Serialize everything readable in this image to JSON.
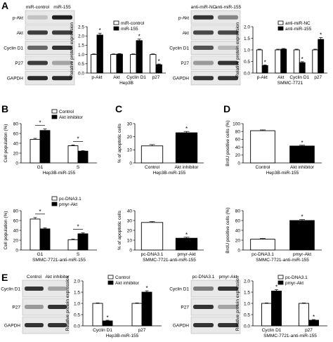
{
  "panels": {
    "A": "A",
    "B": "B",
    "C": "C",
    "D": "D",
    "E": "E"
  },
  "blots": {
    "A_left": {
      "headers": [
        "miR-control",
        "miR-155"
      ],
      "rows": [
        "p-Akt",
        "Akt",
        "Cyclin D1",
        "P27",
        "GAPDH"
      ],
      "intensity": [
        [
          0.15,
          0.95
        ],
        [
          0.8,
          0.8
        ],
        [
          0.6,
          0.85
        ],
        [
          0.8,
          0.3
        ],
        [
          0.9,
          0.9
        ]
      ]
    },
    "A_right": {
      "headers": [
        "anti-miR-NC",
        "anti-miR-155"
      ],
      "rows": [
        "p-Akt",
        "Akt",
        "Cyclin D1",
        "P27",
        "GAPDH"
      ],
      "intensity": [
        [
          0.85,
          0.45
        ],
        [
          0.75,
          0.75
        ],
        [
          0.7,
          0.2
        ],
        [
          0.35,
          0.85
        ],
        [
          0.85,
          0.85
        ]
      ]
    },
    "E_left": {
      "headers": [
        "Control",
        "Akt inhibitor"
      ],
      "rows": [
        "Cyclin D1",
        "P27",
        "GAPDH"
      ],
      "intensity": [
        [
          0.85,
          0.3
        ],
        [
          0.35,
          0.85
        ],
        [
          0.85,
          0.85
        ]
      ]
    },
    "E_right": {
      "headers": [
        "pc-DNA3.1",
        "pmyr-Akt"
      ],
      "rows": [
        "Cyclin D1",
        "P27",
        "GAPDH"
      ],
      "intensity": [
        [
          0.5,
          0.85
        ],
        [
          0.85,
          0.3
        ],
        [
          0.85,
          0.85
        ]
      ]
    }
  },
  "chart_data": [
    {
      "id": "A1",
      "type": "bar",
      "categories": [
        "p-Akt",
        "Akt",
        "Cyclin D1",
        "p27"
      ],
      "series": [
        {
          "name": "miR-control",
          "values": [
            1,
            1,
            1,
            1
          ],
          "err": [
            0.03,
            0.03,
            0.03,
            0.03
          ],
          "color": "#ffffff"
        },
        {
          "name": "miR-155",
          "values": [
            2.05,
            1.02,
            1.75,
            0.45
          ],
          "err": [
            0.1,
            0.03,
            0.08,
            0.04
          ],
          "color": "#000000"
        }
      ],
      "stars": [
        true,
        false,
        true,
        true
      ],
      "ylabel": "Relative protein expression",
      "xlabel": "Hep3B",
      "ylim": [
        0,
        2.5
      ],
      "yticks": [
        "0.0",
        "0.5",
        "1.0",
        "1.5",
        "2.0",
        "2.5"
      ],
      "legend": "top-left"
    },
    {
      "id": "A2",
      "type": "bar",
      "categories": [
        "p-Akt",
        "Akt",
        "Cyclin D1",
        "p27"
      ],
      "series": [
        {
          "name": "anti-miR-NC",
          "values": [
            1,
            1,
            1,
            1
          ],
          "err": [
            0.03,
            0.03,
            0.03,
            0.03
          ],
          "color": "#ffffff"
        },
        {
          "name": "anti-miR-155",
          "values": [
            0.32,
            1.03,
            0.45,
            1.45
          ],
          "err": [
            0.03,
            0.03,
            0.04,
            0.08
          ],
          "color": "#000000"
        }
      ],
      "stars": [
        true,
        false,
        true,
        true
      ],
      "ylabel": "Relative protein expression",
      "xlabel": "SMMC-7721",
      "ylim": [
        0,
        2.0
      ],
      "yticks": [
        "0.0",
        "0.5",
        "1.0",
        "1.5",
        "2.0"
      ],
      "legend": "top-left"
    },
    {
      "id": "B1",
      "type": "bar",
      "categories": [
        "G1",
        "S"
      ],
      "series": [
        {
          "name": "Control",
          "values": [
            48,
            35
          ],
          "err": [
            2,
            1.5
          ],
          "color": "#ffffff"
        },
        {
          "name": "Akt inhibitor",
          "values": [
            66,
            24
          ],
          "err": [
            3,
            1
          ],
          "color": "#000000"
        }
      ],
      "stars": [
        true,
        true
      ],
      "ylabel": "Cell population (%)",
      "xlabel": "Hep3B-miR-155",
      "ylim": [
        0,
        80
      ],
      "yticks": [
        "0",
        "20",
        "40",
        "60",
        "80"
      ],
      "legend": "top-right"
    },
    {
      "id": "B2",
      "type": "bar",
      "categories": [
        "G1",
        "S"
      ],
      "series": [
        {
          "name": "pc-DNA3.1",
          "values": [
            63,
            21
          ],
          "err": [
            3,
            1.5
          ],
          "color": "#ffffff"
        },
        {
          "name": "pmyr-Akt",
          "values": [
            43,
            33
          ],
          "err": [
            2,
            2
          ],
          "color": "#000000"
        }
      ],
      "stars": [
        true,
        true
      ],
      "ylabel": "Cell population (%)",
      "xlabel": "SMMC-7721-anti-miR-155",
      "ylim": [
        0,
        80
      ],
      "yticks": [
        "0",
        "20",
        "40",
        "60",
        "80"
      ],
      "legend": "top-right"
    },
    {
      "id": "C1",
      "type": "bar",
      "categories": [
        "Control",
        "Akt inhibitor"
      ],
      "series": [
        {
          "name": "",
          "values": [
            13,
            23
          ],
          "err": [
            1,
            1
          ],
          "colors": [
            "#ffffff",
            "#000000"
          ]
        }
      ],
      "stars": [
        false,
        true
      ],
      "ylabel": "% of apoptotic cells",
      "xlabel": "Hep3B-miR-155",
      "ylim": [
        0,
        30
      ],
      "yticks": [
        "0",
        "10",
        "20",
        "30"
      ]
    },
    {
      "id": "C2",
      "type": "bar",
      "categories": [
        "pc-DNA3.1",
        "pmyr-Akt"
      ],
      "series": [
        {
          "name": "",
          "values": [
            28,
            12
          ],
          "err": [
            1,
            1
          ],
          "colors": [
            "#ffffff",
            "#000000"
          ]
        }
      ],
      "stars": [
        false,
        true
      ],
      "ylabel": "% of apoptotic cells",
      "xlabel": "SMMC-7721-anti-miR-155",
      "ylim": [
        0,
        40
      ],
      "yticks": [
        "0",
        "10",
        "20",
        "30",
        "40"
      ]
    },
    {
      "id": "D1",
      "type": "bar",
      "categories": [
        "Control",
        "Akt inhibitor"
      ],
      "series": [
        {
          "name": "",
          "values": [
            82,
            43
          ],
          "err": [
            2,
            2
          ],
          "colors": [
            "#ffffff",
            "#000000"
          ]
        }
      ],
      "stars": [
        false,
        true
      ],
      "ylabel": "BrdU positive cells (%)",
      "xlabel": "Hep3B-miR-155",
      "ylim": [
        0,
        100
      ],
      "yticks": [
        "0",
        "20",
        "40",
        "60",
        "80",
        "100"
      ]
    },
    {
      "id": "D2",
      "type": "bar",
      "categories": [
        "pc-DNA3.1",
        "pmyr-Akt"
      ],
      "series": [
        {
          "name": "",
          "values": [
            22,
            60
          ],
          "err": [
            1.5,
            2
          ],
          "colors": [
            "#ffffff",
            "#000000"
          ]
        }
      ],
      "stars": [
        false,
        true
      ],
      "ylabel": "BrdU positive cells (%)",
      "xlabel": "SMMC-7721-anti-miR-155",
      "ylim": [
        0,
        80
      ],
      "yticks": [
        "0",
        "20",
        "40",
        "60",
        "80"
      ]
    },
    {
      "id": "E1",
      "type": "bar",
      "categories": [
        "Cyclin D1",
        "p27"
      ],
      "series": [
        {
          "name": "Control",
          "values": [
            1,
            1
          ],
          "err": [
            0.02,
            0.02
          ],
          "color": "#ffffff"
        },
        {
          "name": "Akt inhibitor",
          "values": [
            0.22,
            1.5
          ],
          "err": [
            0.03,
            0.06
          ],
          "color": "#000000"
        }
      ],
      "stars": [
        true,
        true
      ],
      "ylabel": "Relative protein expression",
      "xlabel": "Hep3B-miR-155",
      "ylim": [
        0,
        2.0
      ],
      "yticks": [
        "0.0",
        "0.5",
        "1.0",
        "1.5",
        "2.0"
      ],
      "legend": "top-left"
    },
    {
      "id": "E2",
      "type": "bar",
      "categories": [
        "Cyclin D1",
        "p27"
      ],
      "series": [
        {
          "name": "pc-DNA3.1",
          "values": [
            1,
            1
          ],
          "err": [
            0.02,
            0.02
          ],
          "color": "#ffffff"
        },
        {
          "name": "pmyr-Akt",
          "values": [
            1.55,
            0.25
          ],
          "err": [
            0.06,
            0.03
          ],
          "color": "#000000"
        }
      ],
      "stars": [
        true,
        true
      ],
      "ylabel": "Relative protein expression",
      "xlabel": "SMMC-7721-anti-miR-155",
      "ylim": [
        0,
        2.0
      ],
      "yticks": [
        "0.0",
        "0.5",
        "1.0",
        "1.5",
        "2.0"
      ],
      "legend": "top-left"
    }
  ]
}
